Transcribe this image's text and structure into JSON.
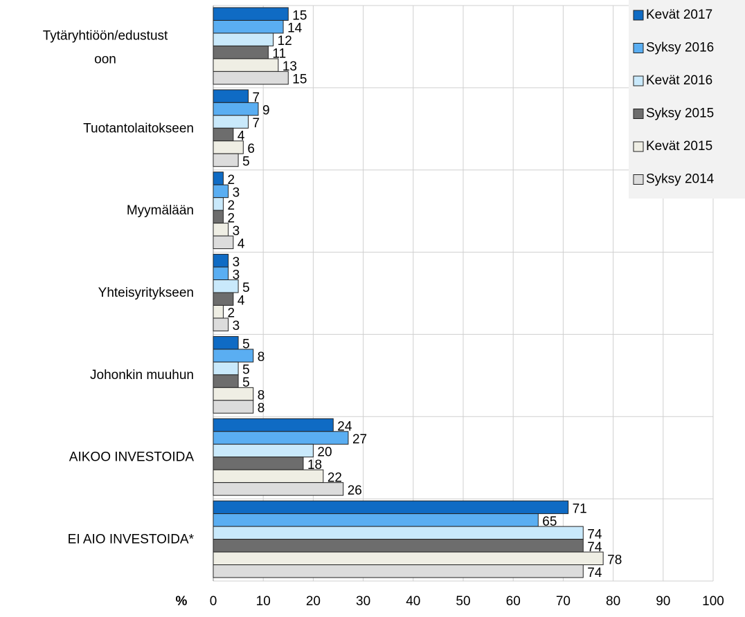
{
  "chart_data": {
    "type": "bar",
    "orientation": "horizontal",
    "xlabel": "%",
    "categories": [
      "Tytäryhtiöön/edustustoon",
      "Tuotantolaitokseen",
      "Myymälään",
      "Yhteisyritykseen",
      "Johonkin muuhun",
      "AIKOO INVESTOIDA",
      "EI AIO INVESTOIDA*"
    ],
    "series": [
      {
        "name": "Kevät 2017",
        "color": "#0f6bc4",
        "values": [
          15,
          7,
          2,
          3,
          5,
          24,
          71
        ]
      },
      {
        "name": "Syksy 2016",
        "color": "#5aaef2",
        "values": [
          14,
          9,
          3,
          3,
          8,
          27,
          65
        ]
      },
      {
        "name": "Kevät 2016",
        "color": "#c9e9fb",
        "values": [
          12,
          7,
          2,
          5,
          5,
          20,
          74
        ]
      },
      {
        "name": "Syksy 2015",
        "color": "#6d6d6d",
        "values": [
          11,
          4,
          2,
          4,
          5,
          18,
          74
        ]
      },
      {
        "name": "Kevät 2015",
        "color": "#efeee4",
        "values": [
          13,
          6,
          3,
          2,
          8,
          22,
          78
        ]
      },
      {
        "name": "Syksy 2014",
        "color": "#dcdcdc",
        "values": [
          15,
          5,
          4,
          3,
          8,
          26,
          74
        ]
      }
    ],
    "xlim": [
      0,
      100
    ],
    "xticks": [
      0,
      10,
      20,
      30,
      40,
      50,
      60,
      70,
      80,
      90,
      100
    ],
    "grid": true,
    "legend": "top-right"
  }
}
